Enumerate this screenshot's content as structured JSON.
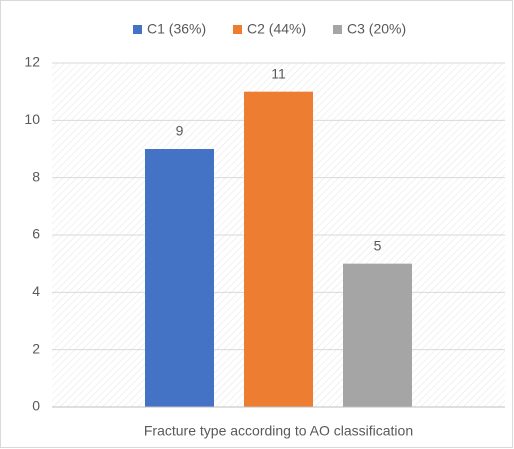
{
  "chart_data": {
    "type": "bar",
    "categories": [
      "Fracture type according to AO classification"
    ],
    "series": [
      {
        "name": "C1 (36%)",
        "color": "#4472c4",
        "values": [
          9
        ]
      },
      {
        "name": "C2 (44%)",
        "color": "#ed7d31",
        "values": [
          11
        ]
      },
      {
        "name": "C3 (20%)",
        "color": "#a5a5a5",
        "values": [
          5
        ]
      }
    ],
    "ylim": [
      0,
      12
    ],
    "yticks": [
      0,
      2,
      4,
      6,
      8,
      10,
      12
    ],
    "grid": true,
    "legend": "top"
  }
}
